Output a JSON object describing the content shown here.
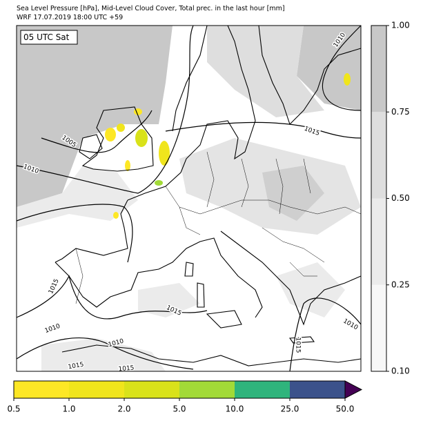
{
  "header": {
    "title": "Sea Level Pressure [hPa], Mid-Level Cloud Cover, Total prec. in the last hour [mm]",
    "subtitle": "WRF 17.07.2019 18:00 UTC +59"
  },
  "map": {
    "time_label": "05 UTC Sat",
    "contour_labels": [
      1010,
      1015,
      1005,
      1010,
      1015,
      1015,
      1010,
      1010,
      1015,
      1015,
      1015,
      1010
    ]
  },
  "cloud_colorbar": {
    "colors": [
      "#f7f7f7",
      "#ebebeb",
      "#dedede",
      "#c8c8c8"
    ],
    "ticks": [
      {
        "value": 0.1,
        "label": "0.10"
      },
      {
        "value": 0.25,
        "label": "0.25"
      },
      {
        "value": 0.5,
        "label": "0.50"
      },
      {
        "value": 0.75,
        "label": "0.75"
      },
      {
        "value": 1,
        "label": "1.00"
      }
    ]
  },
  "precip_colorbar": {
    "colors": [
      "#fde725",
      "#f0e51c",
      "#d9e21a",
      "#a2da37",
      "#2fb47c",
      "#3b528b"
    ],
    "extend_color": "#440154",
    "ticks": [
      0.5,
      {
        "value": 1,
        "label": "1.0"
      },
      {
        "value": 2,
        "label": "2.0"
      },
      {
        "value": 5,
        "label": "5.0"
      },
      {
        "value": 10,
        "label": "10.0"
      },
      {
        "value": 25,
        "label": "25.0"
      },
      {
        "value": 50,
        "label": "50.0"
      }
    ]
  }
}
